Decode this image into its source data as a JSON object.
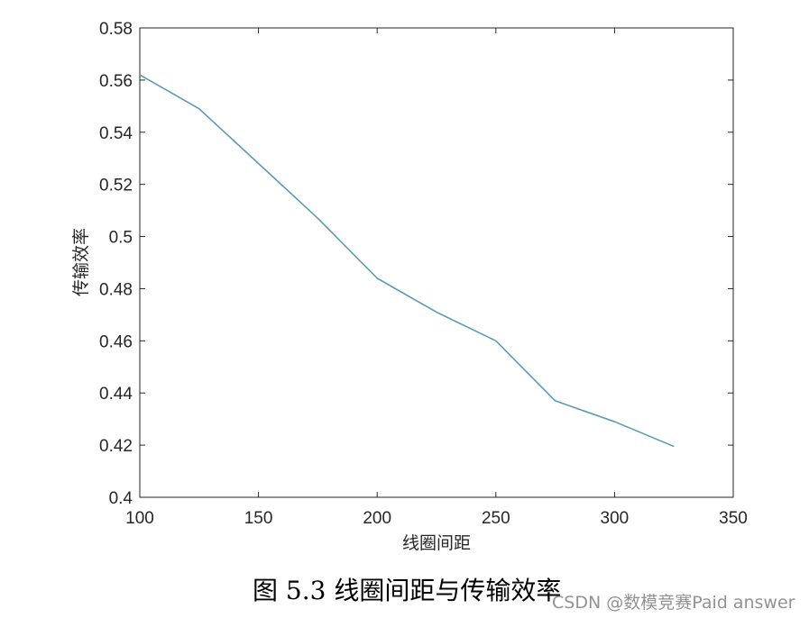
{
  "chart_data": {
    "type": "line",
    "xlabel": "线圈间距",
    "ylabel": "传输效率",
    "xlim": [
      100,
      350
    ],
    "ylim": [
      0.4,
      0.58
    ],
    "xticks": [
      "100",
      "150",
      "200",
      "250",
      "300",
      "350"
    ],
    "yticks": [
      "0.4",
      "0.42",
      "0.44",
      "0.46",
      "0.48",
      "0.5",
      "0.52",
      "0.54",
      "0.56",
      "0.58"
    ],
    "grid": false,
    "line_color": "#5b9bb5",
    "series": [
      {
        "x": [
          100,
          125,
          150,
          175,
          200,
          225,
          250,
          275,
          300,
          325
        ],
        "values": [
          0.562,
          0.549,
          0.528,
          0.507,
          0.484,
          0.471,
          0.46,
          0.437,
          0.429,
          0.4195
        ]
      }
    ]
  },
  "caption": "图 5.3  线圈间距与传输效率",
  "watermark": "CSDN @数模竞赛Paid answer"
}
